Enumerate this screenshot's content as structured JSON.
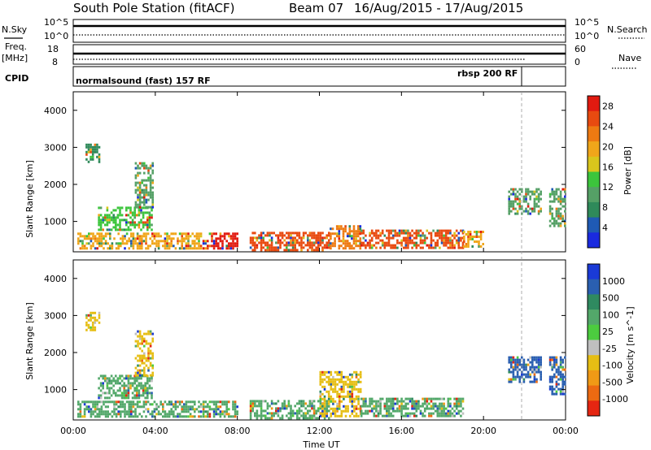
{
  "header": {
    "station": "South Pole Station (fitACF)",
    "beam": "Beam 07",
    "dates": "16/Aug/2015 - 17/Aug/2015"
  },
  "top_panel": {
    "nsky_label": "N.Sky",
    "nsky_ticks": [
      "10^5",
      "10^0"
    ],
    "nsearch_label": "N.Search",
    "nsearch_ticks": [
      "10^5",
      "10^0"
    ],
    "freq_label_1": "Freq.",
    "freq_label_2": "[MHz]",
    "freq_ticks": [
      "18",
      "8"
    ],
    "nave_label": "Nave",
    "nave_ticks": [
      "60",
      "0"
    ],
    "cpid_label": "CPID",
    "cpid_mode_1": "normalsound (fast) 157 RF",
    "cpid_mode_2": "rbsp 200 RF"
  },
  "time_axis": {
    "label": "Time UT",
    "ticks": [
      "00:00",
      "04:00",
      "08:00",
      "12:00",
      "16:00",
      "20:00",
      "00:00"
    ]
  },
  "colors": {
    "power_scale": [
      "#1a2adf",
      "#1f5ab4",
      "#2f8a5a",
      "#55a066",
      "#3cc53c",
      "#d9c61c",
      "#f0a61a",
      "#ee7a12",
      "#e84a10",
      "#e11a10"
    ],
    "velocity_scale": [
      "#1a3ad6",
      "#2a5fb0",
      "#2f8a60",
      "#53a86a",
      "#4ccc3f",
      "#bfbfbf",
      "#e6be14",
      "#f09a16",
      "#ec6a12",
      "#e52612"
    ]
  },
  "chart_data": [
    {
      "type": "heatmap",
      "title": "Power",
      "xlabel": "Time UT",
      "ylabel": "Slant Range [km]",
      "xlim_hours": [
        0,
        24
      ],
      "ylim": [
        180,
        4500
      ],
      "y_ticks": [
        1000,
        2000,
        3000,
        4000
      ],
      "colorbar_label": "Power [dB]",
      "colorbar_ticks": [
        "28",
        "24",
        "20",
        "16",
        "12",
        "8",
        "4"
      ],
      "colorbar_range": [
        0,
        30
      ],
      "regions": [
        {
          "t0": 0.2,
          "t1": 6.2,
          "r0": 250,
          "r1": 700,
          "value": 18
        },
        {
          "t0": 6.3,
          "t1": 8.0,
          "r0": 250,
          "r1": 700,
          "value": 28
        },
        {
          "t0": 8.6,
          "t1": 12.5,
          "r0": 250,
          "r1": 720,
          "value": 24
        },
        {
          "t0": 12.5,
          "t1": 14.0,
          "r0": 280,
          "r1": 900,
          "value": 22
        },
        {
          "t0": 14.0,
          "t1": 19.0,
          "r0": 300,
          "r1": 780,
          "value": 26
        },
        {
          "t0": 19.0,
          "t1": 20.0,
          "r0": 300,
          "r1": 750,
          "value": 18
        },
        {
          "t0": 1.2,
          "t1": 3.8,
          "r0": 750,
          "r1": 1400,
          "value": 12
        },
        {
          "t0": 3.0,
          "t1": 3.9,
          "r0": 1400,
          "r1": 2600,
          "value": 10
        },
        {
          "t0": 0.6,
          "t1": 1.3,
          "r0": 2600,
          "r1": 3100,
          "value": 8
        },
        {
          "t0": 21.2,
          "t1": 22.8,
          "r0": 1200,
          "r1": 1900,
          "value": 10
        },
        {
          "t0": 23.2,
          "t1": 24.0,
          "r0": 900,
          "r1": 1900,
          "value": 10
        }
      ]
    },
    {
      "type": "heatmap",
      "title": "Velocity",
      "xlabel": "Time UT",
      "ylabel": "Slant Range [km]",
      "xlim_hours": [
        0,
        24
      ],
      "ylim": [
        180,
        4500
      ],
      "y_ticks": [
        1000,
        2000,
        3000,
        4000
      ],
      "colorbar_label": "Velocity [m s^-1]",
      "colorbar_ticks": [
        "1000",
        "500",
        "100",
        "25",
        "-25",
        "-100",
        "-500",
        "-1000"
      ],
      "regions": [
        {
          "t0": 0.2,
          "t1": 6.2,
          "r0": 250,
          "r1": 700,
          "value": 100
        },
        {
          "t0": 6.3,
          "t1": 8.0,
          "r0": 250,
          "r1": 700,
          "value": 100
        },
        {
          "t0": 8.6,
          "t1": 12.5,
          "r0": 250,
          "r1": 720,
          "value": 100
        },
        {
          "t0": 12.0,
          "t1": 14.0,
          "r0": 300,
          "r1": 1500,
          "value": -100
        },
        {
          "t0": 14.0,
          "t1": 19.0,
          "r0": 300,
          "r1": 780,
          "value": 100
        },
        {
          "t0": 1.2,
          "t1": 3.8,
          "r0": 750,
          "r1": 1400,
          "value": 100
        },
        {
          "t0": 3.0,
          "t1": 3.9,
          "r0": 1400,
          "r1": 2600,
          "value": -100
        },
        {
          "t0": 0.6,
          "t1": 1.3,
          "r0": 2600,
          "r1": 3100,
          "value": -100
        },
        {
          "t0": 21.2,
          "t1": 22.8,
          "r0": 1200,
          "r1": 1900,
          "value": 500
        },
        {
          "t0": 23.2,
          "t1": 24.0,
          "r0": 900,
          "r1": 1900,
          "value": 500
        }
      ]
    }
  ]
}
